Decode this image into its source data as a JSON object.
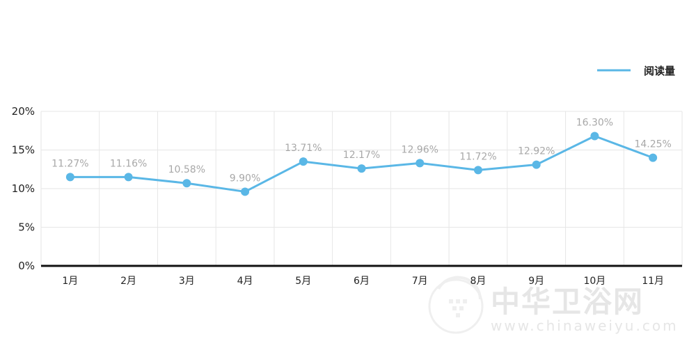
{
  "chart_data": {
    "type": "line",
    "categories": [
      "1月",
      "2月",
      "3月",
      "4月",
      "5月",
      "6月",
      "7月",
      "8月",
      "9月",
      "10月",
      "11月"
    ],
    "series": [
      {
        "name": "阅读量",
        "values": [
          11.27,
          11.16,
          10.58,
          9.9,
          13.71,
          12.17,
          12.96,
          11.72,
          12.92,
          16.3,
          14.25
        ],
        "point_values": [
          11.5,
          11.5,
          10.7,
          9.6,
          13.5,
          12.6,
          13.3,
          12.4,
          13.1,
          16.8,
          14.0
        ],
        "labels": [
          "11.27%",
          "11.16%",
          "10.58%",
          "9.90%",
          "13.71%",
          "12.17%",
          "12.96%",
          "11.72%",
          "12.92%",
          "16.30%",
          "14.25%"
        ],
        "color": "#5ab7e6"
      }
    ],
    "y_ticks": [
      "0%",
      "5%",
      "10%",
      "15%",
      "20%"
    ],
    "ylim": [
      0,
      20
    ],
    "grid": true,
    "legend_position": "top-right",
    "axis_color": "#111111",
    "grid_color": "#e6e6e6",
    "label_color": "#a8a8a8"
  },
  "watermark": {
    "text": "中华卫浴网",
    "url": "www.chinaweiyu.com"
  }
}
